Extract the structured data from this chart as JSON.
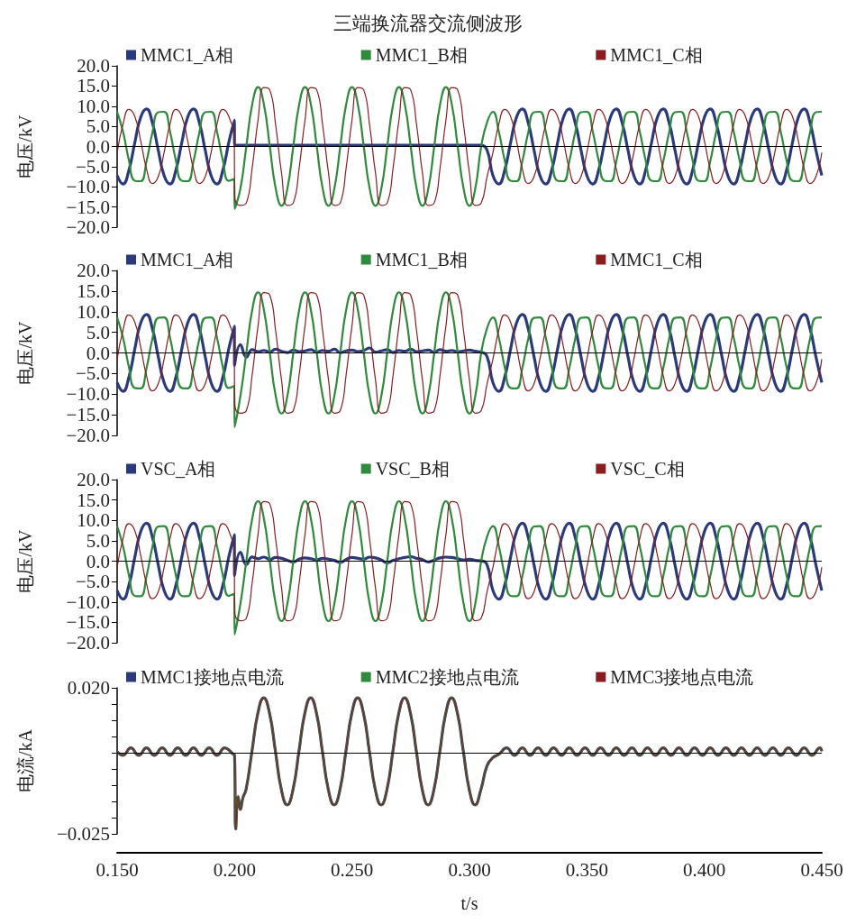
{
  "chart_data": [
    {
      "type": "line",
      "title": "三端换流器交流侧波形",
      "ylabel": "电压/kV",
      "legend": "top",
      "tick_labels": "y",
      "xlim": [
        0.15,
        0.45
      ],
      "ylim": [
        -20,
        20
      ],
      "yticks": [
        {
          "value": -20,
          "label": "−20.0"
        },
        {
          "value": -15,
          "label": "−15.0"
        },
        {
          "value": -10,
          "label": "−10.0"
        },
        {
          "value": -5,
          "label": "−5.0"
        },
        {
          "value": 0,
          "label": "0.0"
        },
        {
          "value": 5,
          "label": "5.0"
        },
        {
          "value": 10,
          "label": "10.0"
        },
        {
          "value": 15,
          "label": "15.0"
        },
        {
          "value": 20,
          "label": "20.0"
        }
      ],
      "ref_lines": [
        {
          "axis": "y",
          "value": 0,
          "color": "#000000"
        }
      ],
      "x": [
        0.15,
        0.1525,
        0.155,
        0.1575,
        0.16,
        0.1625,
        0.165,
        0.1675,
        0.17,
        0.1725,
        0.175,
        0.1775,
        0.18,
        0.1825,
        0.185,
        0.1875,
        0.19,
        0.1925,
        0.195,
        0.1975,
        0.1999,
        0.2,
        0.2025,
        0.205,
        0.2075,
        0.21,
        0.2125,
        0.215,
        0.2175,
        0.22,
        0.2225,
        0.225,
        0.2275,
        0.23,
        0.2325,
        0.235,
        0.2375,
        0.24,
        0.2425,
        0.245,
        0.2475,
        0.25,
        0.2525,
        0.255,
        0.2575,
        0.26,
        0.2625,
        0.265,
        0.2675,
        0.27,
        0.2725,
        0.275,
        0.2775,
        0.28,
        0.2825,
        0.285,
        0.2875,
        0.29,
        0.2925,
        0.295,
        0.2975,
        0.3,
        0.3025,
        0.305,
        0.3075,
        0.31,
        0.3125,
        0.315,
        0.3175,
        0.32,
        0.3225,
        0.325,
        0.3275,
        0.33,
        0.3325,
        0.335,
        0.3375,
        0.34,
        0.3425,
        0.345,
        0.3475,
        0.35,
        0.3525,
        0.355,
        0.3575,
        0.36,
        0.3625,
        0.365,
        0.3675,
        0.37,
        0.3725,
        0.375,
        0.3775,
        0.38,
        0.3825,
        0.385,
        0.3875,
        0.39,
        0.3925,
        0.395,
        0.3975,
        0.4,
        0.4025,
        0.405,
        0.4075,
        0.41,
        0.4125,
        0.415,
        0.4175,
        0.42,
        0.4225,
        0.425,
        0.4275,
        0.43,
        0.4325,
        0.435,
        0.4375,
        0.44,
        0.4425,
        0.445,
        0.4475,
        0.45
      ],
      "series": [
        {
          "name": "MMC1_A相",
          "color": "#2b3a7a",
          "values": [
            -7.2,
            -9.3,
            -5.9,
            0.9,
            7.2,
            9.3,
            5.9,
            -0.9,
            -7.2,
            -9.3,
            -5.9,
            0.9,
            7.2,
            9.3,
            5.9,
            -0.9,
            -7.2,
            -9.3,
            -5.9,
            0.9,
            6.5,
            0.3,
            0.3,
            0.3,
            0.3,
            0.3,
            0.3,
            0.3,
            0.3,
            0.3,
            0.3,
            0.3,
            0.3,
            0.3,
            0.3,
            0.3,
            0.3,
            0.3,
            0.3,
            0.3,
            0.3,
            0.3,
            0.3,
            0.3,
            0.3,
            0.3,
            0.3,
            0.3,
            0.3,
            0.3,
            0.3,
            0.3,
            0.3,
            0.3,
            0.3,
            0.3,
            0.3,
            0.3,
            0.3,
            0.3,
            0.3,
            0.3,
            0.3,
            0.3,
            -0.9,
            -7.2,
            -9.3,
            -5.9,
            0.9,
            7.2,
            9.3,
            5.9,
            -0.9,
            -7.2,
            -9.3,
            -5.9,
            0.9,
            7.2,
            9.3,
            5.9,
            -0.9,
            -7.2,
            -9.3,
            -5.9,
            0.9,
            7.2,
            9.3,
            5.9,
            -0.9,
            -7.2,
            -9.3,
            -5.9,
            0.9,
            7.2,
            9.3,
            5.9,
            -0.9,
            -7.2,
            -9.3,
            -5.9,
            0.9,
            7.2,
            9.3,
            5.9,
            -0.9,
            -7.2,
            -9.3,
            -5.9,
            0.9,
            7.2,
            9.3,
            5.9,
            -0.9,
            -7.2,
            -9.3,
            -5.9,
            0.9,
            7.2,
            9.3,
            5.9,
            -0.9,
            -7.2
          ]
        },
        {
          "name": "MMC1_B相",
          "color": "#2f8a3c",
          "values": [
            8.6,
            3.7,
            -3.4,
            -8.5,
            -8.6,
            -3.7,
            3.4,
            8.5,
            8.6,
            3.7,
            -3.4,
            -8.5,
            -8.6,
            -3.7,
            3.4,
            8.5,
            8.6,
            3.7,
            -3.4,
            -8.5,
            -8.0,
            -15.5,
            -10.4,
            0,
            10.4,
            14.7,
            10.4,
            0,
            -10.4,
            -14.7,
            -10.4,
            0,
            10.4,
            14.7,
            10.4,
            0,
            -10.4,
            -14.7,
            -10.4,
            0,
            10.4,
            14.7,
            10.4,
            0,
            -10.4,
            -14.7,
            -10.4,
            0,
            10.4,
            14.7,
            10.4,
            0,
            -10.4,
            -14.7,
            -10.4,
            0,
            10.4,
            14.7,
            10.4,
            0,
            -10.4,
            -14.7,
            -10.4,
            0,
            6.0,
            8.6,
            3.7,
            -3.4,
            -8.5,
            -8.6,
            -3.7,
            3.4,
            8.5,
            8.6,
            3.7,
            -3.4,
            -8.5,
            -8.6,
            -3.7,
            3.4,
            8.5,
            8.6,
            3.7,
            -3.4,
            -8.5,
            -8.6,
            -3.7,
            3.4,
            8.5,
            8.6,
            3.7,
            -3.4,
            -8.5,
            -8.6,
            -3.7,
            3.4,
            8.5,
            8.6,
            3.7,
            -3.4,
            -8.5,
            -8.6,
            -3.7,
            3.4,
            8.5,
            8.6,
            3.7,
            -3.4,
            -8.5,
            -8.6,
            -3.7,
            3.4,
            8.5,
            8.6,
            3.7,
            -3.4,
            -8.5,
            -8.6,
            -3.7,
            3.4,
            8.5,
            8.6
          ]
        },
        {
          "name": "MMC1_C相",
          "color": "#8a1c1f",
          "values": [
            -1.5,
            5.5,
            9.2,
            7.5,
            1.5,
            -5.5,
            -9.2,
            -7.5,
            -1.5,
            5.5,
            9.2,
            7.5,
            1.5,
            -5.5,
            -9.2,
            -7.5,
            -1.5,
            5.5,
            9.2,
            7.5,
            1.5,
            -12,
            -14.6,
            -14.0,
            -5.3,
            6.6,
            14.6,
            14.0,
            5.3,
            -6.6,
            -14.6,
            -14.0,
            -5.3,
            6.6,
            14.6,
            14.0,
            5.3,
            -6.6,
            -14.6,
            -14.0,
            -5.3,
            6.6,
            14.6,
            14.0,
            5.3,
            -6.6,
            -14.6,
            -14.0,
            -5.3,
            6.6,
            14.6,
            14.0,
            5.3,
            -6.6,
            -14.6,
            -14.0,
            -5.3,
            6.6,
            14.6,
            14.0,
            5.3,
            -6.6,
            -14.6,
            -14.0,
            -7.5,
            -1.5,
            5.5,
            9.2,
            7.5,
            1.5,
            -5.5,
            -9.2,
            -7.5,
            -1.5,
            5.5,
            9.2,
            7.5,
            1.5,
            -5.5,
            -9.2,
            -7.5,
            -1.5,
            5.5,
            9.2,
            7.5,
            1.5,
            -5.5,
            -9.2,
            -7.5,
            -1.5,
            5.5,
            9.2,
            7.5,
            1.5,
            -5.5,
            -9.2,
            -7.5,
            -1.5,
            5.5,
            9.2,
            7.5,
            1.5,
            -5.5,
            -9.2,
            -7.5,
            -1.5,
            5.5,
            9.2,
            7.5,
            1.5,
            -5.5,
            -9.2,
            -7.5,
            -1.5,
            5.5,
            9.2,
            7.5,
            1.5,
            -5.5,
            -9.2,
            -7.5,
            -1.5
          ]
        }
      ]
    },
    {
      "type": "line",
      "ylabel": "电压/kV",
      "legend": "top",
      "tick_labels": "y",
      "xlim": [
        0.15,
        0.45
      ],
      "ylim": [
        -20,
        20
      ],
      "yticks": [
        {
          "value": -20,
          "label": "−20.0"
        },
        {
          "value": -15,
          "label": "−15.0"
        },
        {
          "value": -10,
          "label": "−10.0"
        },
        {
          "value": -5,
          "label": "−5.0"
        },
        {
          "value": 0,
          "label": "0.0"
        },
        {
          "value": 5,
          "label": "5.0"
        },
        {
          "value": 10,
          "label": "10.0"
        },
        {
          "value": 15,
          "label": "15.0"
        },
        {
          "value": 20,
          "label": "20.0"
        }
      ],
      "ref_lines": [
        {
          "axis": "y",
          "value": 0,
          "color": "#000000"
        }
      ],
      "x": [
        0.15,
        0.1525,
        0.155,
        0.1575,
        0.16,
        0.1625,
        0.165,
        0.1675,
        0.17,
        0.1725,
        0.175,
        0.1775,
        0.18,
        0.1825,
        0.185,
        0.1875,
        0.19,
        0.1925,
        0.195,
        0.1975,
        0.1999,
        0.2,
        0.2025,
        0.205,
        0.2075,
        0.21,
        0.2125,
        0.215,
        0.2175,
        0.22,
        0.2225,
        0.225,
        0.2275,
        0.23,
        0.2325,
        0.235,
        0.2375,
        0.24,
        0.2425,
        0.245,
        0.2475,
        0.25,
        0.2525,
        0.255,
        0.2575,
        0.26,
        0.2625,
        0.265,
        0.2675,
        0.27,
        0.2725,
        0.275,
        0.2775,
        0.28,
        0.2825,
        0.285,
        0.2875,
        0.29,
        0.2925,
        0.295,
        0.2975,
        0.3,
        0.3025,
        0.305,
        0.3075,
        0.31,
        0.3125,
        0.315,
        0.3175,
        0.32,
        0.3225,
        0.325,
        0.3275,
        0.33,
        0.3325,
        0.335,
        0.3375,
        0.34,
        0.3425,
        0.345,
        0.3475,
        0.35,
        0.3525,
        0.355,
        0.3575,
        0.36,
        0.3625,
        0.365,
        0.3675,
        0.37,
        0.3725,
        0.375,
        0.3775,
        0.38,
        0.3825,
        0.385,
        0.3875,
        0.39,
        0.3925,
        0.395,
        0.3975,
        0.4,
        0.4025,
        0.405,
        0.4075,
        0.41,
        0.4125,
        0.415,
        0.4175,
        0.42,
        0.4225,
        0.425,
        0.4275,
        0.43,
        0.4325,
        0.435,
        0.4375,
        0.44,
        0.4425,
        0.445,
        0.4475,
        0.45
      ],
      "series": [
        {
          "name": "MMC1_A相",
          "color": "#2b3a7a",
          "values": [
            -7.2,
            -9.3,
            -5.9,
            0.9,
            7.2,
            9.3,
            5.9,
            -0.9,
            -7.2,
            -9.3,
            -5.9,
            0.9,
            7.2,
            9.3,
            5.9,
            -0.9,
            -7.2,
            -9.3,
            -5.9,
            0.9,
            6.5,
            -3.0,
            2.0,
            -1.0,
            0.8,
            0.3,
            0.6,
            0.2,
            0.9,
            0.4,
            0.1,
            0.7,
            0.3,
            0.5,
            0.8,
            0.2,
            0.6,
            0.4,
            0.9,
            0.1,
            0.5,
            0.7,
            0.3,
            0.6,
            1.2,
            0.2,
            0.5,
            0.8,
            0.1,
            0.6,
            0.4,
            0.9,
            0.3,
            0.5,
            0.7,
            0.2,
            0.8,
            0.4,
            0.6,
            0.3,
            0.5,
            0.7,
            0.4,
            0.2,
            -0.9,
            -7.2,
            -9.3,
            -5.9,
            0.9,
            7.2,
            9.3,
            5.9,
            -0.9,
            -7.2,
            -9.3,
            -5.9,
            0.9,
            7.2,
            9.3,
            5.9,
            -0.9,
            -7.2,
            -9.3,
            -5.9,
            0.9,
            7.2,
            9.3,
            5.9,
            -0.9,
            -7.2,
            -9.3,
            -5.9,
            0.9,
            7.2,
            9.3,
            5.9,
            -0.9,
            -7.2,
            -9.3,
            -5.9,
            0.9,
            7.2,
            9.3,
            5.9,
            -0.9,
            -7.2,
            -9.3,
            -5.9,
            0.9,
            7.2,
            9.3,
            5.9,
            -0.9,
            -7.2,
            -9.3,
            -5.9,
            0.9,
            7.2,
            9.3,
            5.9,
            -0.9,
            -7.2
          ]
        },
        {
          "name": "MMC1_B相",
          "color": "#2f8a3c",
          "values": [
            8.6,
            3.7,
            -3.4,
            -8.5,
            -8.6,
            -3.7,
            3.4,
            8.5,
            8.6,
            3.7,
            -3.4,
            -8.5,
            -8.6,
            -3.7,
            3.4,
            8.5,
            8.6,
            3.7,
            -3.4,
            -8.5,
            -8.0,
            -18.0,
            -10.4,
            0,
            10.4,
            14.7,
            10.4,
            0,
            -10.4,
            -14.7,
            -10.4,
            0,
            10.4,
            14.7,
            10.4,
            0,
            -10.4,
            -14.7,
            -10.4,
            0,
            10.4,
            14.7,
            10.4,
            0,
            -10.4,
            -14.7,
            -10.4,
            0,
            10.4,
            14.7,
            10.4,
            0,
            -10.4,
            -14.7,
            -10.4,
            0,
            10.4,
            14.7,
            10.4,
            0,
            -10.4,
            -14.7,
            -10.4,
            0,
            6.0,
            8.6,
            3.7,
            -3.4,
            -8.5,
            -8.6,
            -3.7,
            3.4,
            8.5,
            8.6,
            3.7,
            -3.4,
            -8.5,
            -8.6,
            -3.7,
            3.4,
            8.5,
            8.6,
            3.7,
            -3.4,
            -8.5,
            -8.6,
            -3.7,
            3.4,
            8.5,
            8.6,
            3.7,
            -3.4,
            -8.5,
            -8.6,
            -3.7,
            3.4,
            8.5,
            8.6,
            3.7,
            -3.4,
            -8.5,
            -8.6,
            -3.7,
            3.4,
            8.5,
            8.6,
            3.7,
            -3.4,
            -8.5,
            -8.6,
            -3.7,
            3.4,
            8.5,
            8.6,
            3.7,
            -3.4,
            -8.5,
            -8.6,
            -3.7,
            3.4,
            8.5,
            8.6
          ]
        },
        {
          "name": "MMC1_C相",
          "color": "#8a1c1f",
          "values": [
            -1.5,
            5.5,
            9.2,
            7.5,
            1.5,
            -5.5,
            -9.2,
            -7.5,
            -1.5,
            5.5,
            9.2,
            7.5,
            1.5,
            -5.5,
            -9.2,
            -7.5,
            -1.5,
            5.5,
            9.2,
            7.5,
            1.5,
            -12,
            -14.6,
            -14.0,
            -5.3,
            6.6,
            14.6,
            14.0,
            5.3,
            -6.6,
            -14.6,
            -14.0,
            -5.3,
            6.6,
            14.6,
            14.0,
            5.3,
            -6.6,
            -14.6,
            -14.0,
            -5.3,
            6.6,
            14.6,
            14.0,
            5.3,
            -6.6,
            -14.6,
            -14.0,
            -5.3,
            6.6,
            14.6,
            14.0,
            5.3,
            -6.6,
            -14.6,
            -14.0,
            -5.3,
            6.6,
            14.6,
            14.0,
            5.3,
            -6.6,
            -14.6,
            -14.0,
            -7.5,
            -1.5,
            5.5,
            9.2,
            7.5,
            1.5,
            -5.5,
            -9.2,
            -7.5,
            -1.5,
            5.5,
            9.2,
            7.5,
            1.5,
            -5.5,
            -9.2,
            -7.5,
            -1.5,
            5.5,
            9.2,
            7.5,
            1.5,
            -5.5,
            -9.2,
            -7.5,
            -1.5,
            5.5,
            9.2,
            7.5,
            1.5,
            -5.5,
            -9.2,
            -7.5,
            -1.5,
            5.5,
            9.2,
            7.5,
            1.5,
            -5.5,
            -9.2,
            -7.5,
            -1.5,
            5.5,
            9.2,
            7.5,
            1.5,
            -5.5,
            -9.2,
            -7.5,
            -1.5,
            5.5,
            9.2,
            7.5,
            1.5,
            -5.5,
            -9.2,
            -7.5,
            -1.5
          ]
        }
      ]
    },
    {
      "type": "line",
      "ylabel": "电压/kV",
      "legend": "top",
      "tick_labels": "y",
      "xlim": [
        0.15,
        0.45
      ],
      "ylim": [
        -20,
        20
      ],
      "yticks": [
        {
          "value": -20,
          "label": "−20.0"
        },
        {
          "value": -15,
          "label": "−15.0"
        },
        {
          "value": -10,
          "label": "−10.0"
        },
        {
          "value": -5,
          "label": "−5.0"
        },
        {
          "value": 0,
          "label": "0.0"
        },
        {
          "value": 5,
          "label": "5.0"
        },
        {
          "value": 10,
          "label": "10.0"
        },
        {
          "value": 15,
          "label": "15.0"
        },
        {
          "value": 20,
          "label": "20.0"
        }
      ],
      "ref_lines": [
        {
          "axis": "y",
          "value": 0,
          "color": "#000000"
        }
      ],
      "x": [
        0.15,
        0.1525,
        0.155,
        0.1575,
        0.16,
        0.1625,
        0.165,
        0.1675,
        0.17,
        0.1725,
        0.175,
        0.1775,
        0.18,
        0.1825,
        0.185,
        0.1875,
        0.19,
        0.1925,
        0.195,
        0.1975,
        0.1999,
        0.2,
        0.2025,
        0.205,
        0.2075,
        0.21,
        0.2125,
        0.215,
        0.2175,
        0.22,
        0.2225,
        0.225,
        0.2275,
        0.23,
        0.2325,
        0.235,
        0.2375,
        0.24,
        0.2425,
        0.245,
        0.2475,
        0.25,
        0.2525,
        0.255,
        0.2575,
        0.26,
        0.2625,
        0.265,
        0.2675,
        0.27,
        0.2725,
        0.275,
        0.2775,
        0.28,
        0.2825,
        0.285,
        0.2875,
        0.29,
        0.2925,
        0.295,
        0.2975,
        0.3,
        0.3025,
        0.305,
        0.3075,
        0.31,
        0.3125,
        0.315,
        0.3175,
        0.32,
        0.3225,
        0.325,
        0.3275,
        0.33,
        0.3325,
        0.335,
        0.3375,
        0.34,
        0.3425,
        0.345,
        0.3475,
        0.35,
        0.3525,
        0.355,
        0.3575,
        0.36,
        0.3625,
        0.365,
        0.3675,
        0.37,
        0.3725,
        0.375,
        0.3775,
        0.38,
        0.3825,
        0.385,
        0.3875,
        0.39,
        0.3925,
        0.395,
        0.3975,
        0.4,
        0.4025,
        0.405,
        0.4075,
        0.41,
        0.4125,
        0.415,
        0.4175,
        0.42,
        0.4225,
        0.425,
        0.4275,
        0.43,
        0.4325,
        0.435,
        0.4375,
        0.44,
        0.4425,
        0.445,
        0.4475,
        0.45
      ],
      "series": [
        {
          "name": "VSC_A相",
          "color": "#2b3a7a",
          "values": [
            -7.2,
            -9.3,
            -5.9,
            0.9,
            7.2,
            9.3,
            5.9,
            -0.9,
            -7.2,
            -9.3,
            -5.9,
            0.9,
            7.2,
            9.3,
            5.9,
            -0.9,
            -7.2,
            -9.3,
            -5.9,
            0.9,
            6.5,
            -3.5,
            2.2,
            -0.8,
            1.0,
            0.6,
            1.0,
            0.4,
            0.9,
            0.7,
            0.2,
            -0.2,
            0.5,
            0.8,
            0.6,
            0.3,
            0.7,
            0.5,
            0.2,
            -0.3,
            0.4,
            0.9,
            0.7,
            0.5,
            1.0,
            0.8,
            0.3,
            -0.4,
            0.2,
            0.6,
            0.9,
            1.1,
            0.7,
            0.4,
            -0.2,
            0.3,
            0.8,
            1.0,
            0.9,
            0.6,
            0.3,
            0.5,
            0.2,
            0.1,
            -0.9,
            -7.2,
            -9.3,
            -5.9,
            0.9,
            7.2,
            9.3,
            5.9,
            -0.9,
            -7.2,
            -9.3,
            -5.9,
            0.9,
            7.2,
            9.3,
            5.9,
            -0.9,
            -7.2,
            -9.3,
            -5.9,
            0.9,
            7.2,
            9.3,
            5.9,
            -0.9,
            -7.2,
            -9.3,
            -5.9,
            0.9,
            7.2,
            9.3,
            5.9,
            -0.9,
            -7.2,
            -9.3,
            -5.9,
            0.9,
            7.2,
            9.3,
            5.9,
            -0.9,
            -7.2,
            -9.3,
            -5.9,
            0.9,
            7.2,
            9.3,
            5.9,
            -0.9,
            -7.2,
            -9.3,
            -5.9,
            0.9,
            7.2,
            9.3,
            5.9,
            -0.9,
            -7.2
          ]
        },
        {
          "name": "VSC_B相",
          "color": "#2f8a3c",
          "values": [
            8.6,
            3.7,
            -3.4,
            -8.5,
            -8.6,
            -3.7,
            3.4,
            8.5,
            8.6,
            3.7,
            -3.4,
            -8.5,
            -8.6,
            -3.7,
            3.4,
            8.5,
            8.6,
            3.7,
            -3.4,
            -8.5,
            -8.0,
            -18.0,
            -10.4,
            0,
            10.4,
            14.7,
            10.4,
            0,
            -10.4,
            -14.7,
            -10.4,
            0,
            10.4,
            14.7,
            10.4,
            0,
            -10.4,
            -14.7,
            -10.4,
            0,
            10.4,
            14.7,
            10.4,
            0,
            -10.4,
            -14.7,
            -10.4,
            0,
            10.4,
            14.7,
            10.4,
            0,
            -10.4,
            -14.7,
            -10.4,
            0,
            10.4,
            14.7,
            10.4,
            0,
            -10.4,
            -14.7,
            -10.4,
            0,
            6.0,
            8.6,
            3.7,
            -3.4,
            -8.5,
            -8.6,
            -3.7,
            3.4,
            8.5,
            8.6,
            3.7,
            -3.4,
            -8.5,
            -8.6,
            -3.7,
            3.4,
            8.5,
            8.6,
            3.7,
            -3.4,
            -8.5,
            -8.6,
            -3.7,
            3.4,
            8.5,
            8.6,
            3.7,
            -3.4,
            -8.5,
            -8.6,
            -3.7,
            3.4,
            8.5,
            8.6,
            3.7,
            -3.4,
            -8.5,
            -8.6,
            -3.7,
            3.4,
            8.5,
            8.6,
            3.7,
            -3.4,
            -8.5,
            -8.6,
            -3.7,
            3.4,
            8.5,
            8.6,
            3.7,
            -3.4,
            -8.5,
            -8.6,
            -3.7,
            3.4,
            8.5,
            8.6
          ]
        },
        {
          "name": "VSC_C相",
          "color": "#8a1c1f",
          "values": [
            -1.5,
            5.5,
            9.2,
            7.5,
            1.5,
            -5.5,
            -9.2,
            -7.5,
            -1.5,
            5.5,
            9.2,
            7.5,
            1.5,
            -5.5,
            -9.2,
            -7.5,
            -1.5,
            5.5,
            9.2,
            7.5,
            1.5,
            -12,
            -14.6,
            -14.0,
            -5.3,
            6.6,
            14.6,
            14.0,
            5.3,
            -6.6,
            -14.6,
            -14.0,
            -5.3,
            6.6,
            14.6,
            14.0,
            5.3,
            -6.6,
            -14.6,
            -14.0,
            -5.3,
            6.6,
            14.6,
            14.0,
            5.3,
            -6.6,
            -14.6,
            -14.0,
            -5.3,
            6.6,
            14.6,
            14.0,
            5.3,
            -6.6,
            -14.6,
            -14.0,
            -5.3,
            6.6,
            14.6,
            14.0,
            5.3,
            -6.6,
            -14.6,
            -14.0,
            -7.5,
            -1.5,
            5.5,
            9.2,
            7.5,
            1.5,
            -5.5,
            -9.2,
            -7.5,
            -1.5,
            5.5,
            9.2,
            7.5,
            1.5,
            -5.5,
            -9.2,
            -7.5,
            -1.5,
            5.5,
            9.2,
            7.5,
            1.5,
            -5.5,
            -9.2,
            -7.5,
            -1.5,
            5.5,
            9.2,
            7.5,
            1.5,
            -5.5,
            -9.2,
            -7.5,
            -1.5,
            5.5,
            9.2,
            7.5,
            1.5,
            -5.5,
            -9.2,
            -7.5,
            -1.5,
            5.5,
            9.2,
            7.5,
            1.5,
            -5.5,
            -9.2,
            -7.5,
            -1.5,
            5.5,
            9.2,
            7.5,
            1.5,
            -5.5,
            -9.2,
            -7.5,
            -1.5
          ]
        }
      ]
    },
    {
      "type": "line",
      "xlabel": "t/s",
      "ylabel": "电流/kA",
      "legend": "top",
      "xlim": [
        0.15,
        0.45
      ],
      "xticks": [
        {
          "value": 0.15,
          "label": "0.150"
        },
        {
          "value": 0.2,
          "label": "0.200"
        },
        {
          "value": 0.25,
          "label": "0.250"
        },
        {
          "value": 0.3,
          "label": "0.300"
        },
        {
          "value": 0.35,
          "label": "0.350"
        },
        {
          "value": 0.4,
          "label": "0.400"
        },
        {
          "value": 0.45,
          "label": "0.450"
        }
      ],
      "ylim": [
        -0.025,
        0.02
      ],
      "yticks": [
        {
          "value": -0.025,
          "label": "−0.025"
        },
        {
          "value": -0.02,
          "label": null
        },
        {
          "value": -0.015,
          "label": null
        },
        {
          "value": -0.01,
          "label": null
        },
        {
          "value": -0.005,
          "label": null
        },
        {
          "value": 0,
          "label": null
        },
        {
          "value": 0.005,
          "label": null
        },
        {
          "value": 0.01,
          "label": null
        },
        {
          "value": 0.015,
          "label": null
        },
        {
          "value": 0.02,
          "label": "0.020"
        }
      ],
      "ref_lines": [
        {
          "axis": "y",
          "value": 0,
          "color": "#000000"
        }
      ],
      "x": [
        0.15,
        0.1525,
        0.1558,
        0.1592,
        0.1625,
        0.1658,
        0.1692,
        0.1725,
        0.1758,
        0.1792,
        0.1825,
        0.1858,
        0.1892,
        0.1925,
        0.1958,
        0.1995,
        0.2,
        0.2005,
        0.2015,
        0.2025,
        0.2035,
        0.2049,
        0.2074,
        0.2099,
        0.2124,
        0.2149,
        0.2174,
        0.2199,
        0.2224,
        0.2249,
        0.2274,
        0.2299,
        0.2324,
        0.2349,
        0.2374,
        0.2399,
        0.2424,
        0.2449,
        0.2474,
        0.2499,
        0.2524,
        0.2549,
        0.2574,
        0.2599,
        0.2624,
        0.2649,
        0.2674,
        0.2699,
        0.2724,
        0.2749,
        0.2774,
        0.2799,
        0.2824,
        0.2849,
        0.2874,
        0.2899,
        0.2924,
        0.2949,
        0.2974,
        0.2999,
        0.3024,
        0.3049,
        0.3075,
        0.31,
        0.3125,
        0.3158,
        0.3192,
        0.3225,
        0.3258,
        0.3292,
        0.3325,
        0.3358,
        0.3392,
        0.3425,
        0.3458,
        0.3492,
        0.3525,
        0.3558,
        0.3592,
        0.3625,
        0.3658,
        0.3692,
        0.3725,
        0.3758,
        0.3792,
        0.3825,
        0.3858,
        0.3892,
        0.3925,
        0.3958,
        0.3992,
        0.4025,
        0.4058,
        0.4092,
        0.4125,
        0.4158,
        0.4192,
        0.4225,
        0.4258,
        0.4292,
        0.4325,
        0.4358,
        0.4392,
        0.4425,
        0.4458,
        0.4492,
        0.45
      ],
      "series": [
        {
          "name": "MMC1接地点电流",
          "color": "#2b3a7a",
          "values": [
            0.0003,
            -0.0008,
            0.0015,
            -0.0008,
            0.0015,
            -0.0008,
            0.0015,
            -0.0008,
            0.0015,
            -0.0008,
            0.0015,
            -0.0008,
            0.0015,
            -0.0008,
            0.0015,
            -0.0005,
            -0.0008,
            -0.0235,
            -0.0135,
            -0.0175,
            -0.014,
            -0.0113,
            0.0004,
            0.0121,
            0.0169,
            0.0121,
            0.0004,
            -0.0113,
            -0.0161,
            -0.0113,
            0.0004,
            0.0121,
            0.0169,
            0.0121,
            0.0004,
            -0.0113,
            -0.0161,
            -0.0113,
            0.0004,
            0.0121,
            0.0169,
            0.0121,
            0.0004,
            -0.0113,
            -0.0161,
            -0.0113,
            0.0004,
            0.0121,
            0.0169,
            0.0121,
            0.0004,
            -0.0113,
            -0.0161,
            -0.0113,
            0.0004,
            0.0121,
            0.0169,
            0.0121,
            0.0004,
            -0.0113,
            -0.0161,
            -0.0113,
            -0.004,
            -0.0015,
            -0.0005,
            0.0015,
            -0.0008,
            0.0015,
            -0.0008,
            0.0015,
            -0.0008,
            0.0015,
            -0.0008,
            0.0015,
            -0.0008,
            0.0015,
            -0.0008,
            0.0015,
            -0.0008,
            0.0015,
            -0.0008,
            0.0015,
            -0.0008,
            0.0015,
            -0.0008,
            0.0015,
            -0.0008,
            0.0015,
            -0.0008,
            0.0015,
            -0.0008,
            0.0015,
            -0.0008,
            0.0015,
            -0.0008,
            0.0015,
            -0.0008,
            0.0015,
            -0.0008,
            0.0015,
            -0.0008,
            0.0015,
            -0.0008,
            0.0015,
            -0.0008,
            0.0015,
            0.0005
          ]
        },
        {
          "name": "MMC2接地点电流",
          "color": "#2f8a3c",
          "values": [
            0.0003,
            -0.0008,
            0.0015,
            -0.0008,
            0.0015,
            -0.0008,
            0.0015,
            -0.0008,
            0.0015,
            -0.0008,
            0.0015,
            -0.0008,
            0.0015,
            -0.0008,
            0.0015,
            -0.0005,
            -0.0008,
            -0.0235,
            -0.0135,
            -0.0175,
            -0.014,
            -0.0113,
            0.0004,
            0.0121,
            0.0169,
            0.0121,
            0.0004,
            -0.0113,
            -0.0161,
            -0.0113,
            0.0004,
            0.0121,
            0.0169,
            0.0121,
            0.0004,
            -0.0113,
            -0.0161,
            -0.0113,
            0.0004,
            0.0121,
            0.0169,
            0.0121,
            0.0004,
            -0.0113,
            -0.0161,
            -0.0113,
            0.0004,
            0.0121,
            0.0169,
            0.0121,
            0.0004,
            -0.0113,
            -0.0161,
            -0.0113,
            0.0004,
            0.0121,
            0.0169,
            0.0121,
            0.0004,
            -0.0113,
            -0.0161,
            -0.0113,
            -0.004,
            -0.0015,
            -0.0005,
            0.0015,
            -0.0008,
            0.0015,
            -0.0008,
            0.0015,
            -0.0008,
            0.0015,
            -0.0008,
            0.0015,
            -0.0008,
            0.0015,
            -0.0008,
            0.0015,
            -0.0008,
            0.0015,
            -0.0008,
            0.0015,
            -0.0008,
            0.0015,
            -0.0008,
            0.0015,
            -0.0008,
            0.0015,
            -0.0008,
            0.0015,
            -0.0008,
            0.0015,
            -0.0008,
            0.0015,
            -0.0008,
            0.0015,
            -0.0008,
            0.0015,
            -0.0008,
            0.0015,
            -0.0008,
            0.0015,
            -0.0008,
            0.0015,
            -0.0008,
            0.0015,
            0.0005
          ]
        },
        {
          "name": "MMC3接地点电流",
          "color": "#8a1c1f",
          "values": [
            0.0003,
            -0.0008,
            0.0015,
            -0.0008,
            0.0015,
            -0.0008,
            0.0015,
            -0.0008,
            0.0015,
            -0.0008,
            0.0015,
            -0.0008,
            0.0015,
            -0.0008,
            0.0015,
            -0.0005,
            -0.0008,
            -0.0235,
            -0.0135,
            -0.0175,
            -0.014,
            -0.0113,
            0.0004,
            0.0121,
            0.0169,
            0.0121,
            0.0004,
            -0.0113,
            -0.0161,
            -0.0113,
            0.0004,
            0.0121,
            0.0169,
            0.0121,
            0.0004,
            -0.0113,
            -0.0161,
            -0.0113,
            0.0004,
            0.0121,
            0.0169,
            0.0121,
            0.0004,
            -0.0113,
            -0.0161,
            -0.0113,
            0.0004,
            0.0121,
            0.0169,
            0.0121,
            0.0004,
            -0.0113,
            -0.0161,
            -0.0113,
            0.0004,
            0.0121,
            0.0169,
            0.0121,
            0.0004,
            -0.0113,
            -0.0161,
            -0.0113,
            -0.004,
            -0.0015,
            -0.0005,
            0.0015,
            -0.0008,
            0.0015,
            -0.0008,
            0.0015,
            -0.0008,
            0.0015,
            -0.0008,
            0.0015,
            -0.0008,
            0.0015,
            -0.0008,
            0.0015,
            -0.0008,
            0.0015,
            -0.0008,
            0.0015,
            -0.0008,
            0.0015,
            -0.0008,
            0.0015,
            -0.0008,
            0.0015,
            -0.0008,
            0.0015,
            -0.0008,
            0.0015,
            -0.0008,
            0.0015,
            -0.0008,
            0.0015,
            -0.0008,
            0.0015,
            -0.0008,
            0.0015,
            -0.0008,
            0.0015,
            -0.0008,
            0.0015,
            -0.0008,
            0.0015,
            0.0005
          ]
        }
      ]
    }
  ]
}
